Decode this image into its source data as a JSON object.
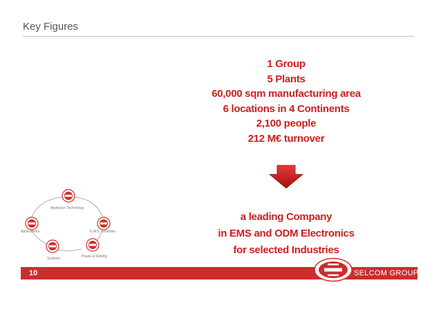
{
  "header": {
    "title": "Key Figures"
  },
  "key_figures": [
    "1 Group",
    "5 Plants",
    "60,000 sqm manufacturing area",
    "6 locations in 4 Continents",
    "2,100 people",
    "212 M€ turnover"
  ],
  "claim": {
    "lines": [
      "a leading Company",
      "in EMS and ODM Electronics",
      "for selected Industries"
    ]
  },
  "cycle": {
    "labels": [
      "Appliance Technology",
      "E.M.S. Solutions",
      "Power & Mobility",
      "Systems",
      "Applications"
    ]
  },
  "footer": {
    "page_number": "10",
    "brand": "SELCOM GROUP"
  },
  "colors": {
    "accent": "#cc1f1f",
    "footer_bar": "#cc2d2d",
    "rule": "#bfbfbf"
  },
  "icons": {
    "arrow": "down-arrow-icon",
    "logo": "selcom-logo-icon"
  }
}
